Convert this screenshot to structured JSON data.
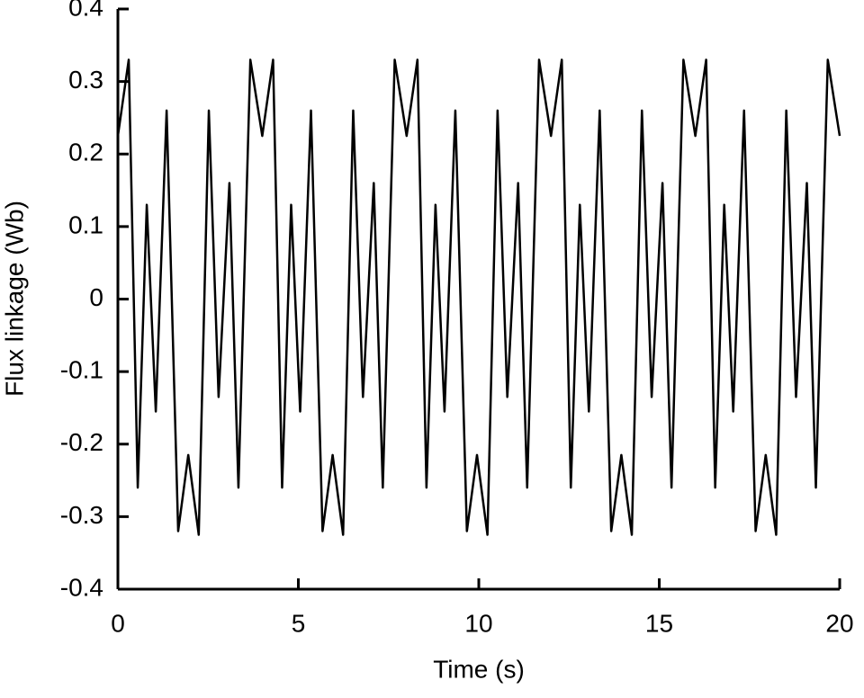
{
  "chart_data": {
    "type": "line",
    "xlabel": "Time (s)",
    "ylabel": "Flux linkage (Wb)",
    "x": [
      0,
      0.3,
      0.55,
      0.8,
      1.05,
      1.35,
      1.67,
      1.95,
      2.24,
      2.52,
      2.79,
      3.09,
      3.34,
      3.67,
      4,
      4.3,
      4.55,
      4.8,
      5.05,
      5.35,
      5.67,
      5.95,
      6.24,
      6.52,
      6.79,
      7.09,
      7.34,
      7.67,
      8,
      8.3,
      8.55,
      8.8,
      9.05,
      9.35,
      9.67,
      9.95,
      10.24,
      10.52,
      10.79,
      11.09,
      11.34,
      11.67,
      12,
      12.3,
      12.55,
      12.8,
      13.05,
      13.35,
      13.67,
      13.95,
      14.24,
      14.52,
      14.79,
      15.09,
      15.34,
      15.67,
      16,
      16.3,
      16.55,
      16.8,
      17.05,
      17.35,
      17.67,
      17.95,
      18.24,
      18.52,
      18.79,
      19.09,
      19.34,
      19.67,
      20
    ],
    "series": [
      {
        "name": "Flux linkage",
        "color": "#000000",
        "values": [
          0.225,
          0.33,
          -0.26,
          0.13,
          -0.155,
          0.26,
          -0.32,
          -0.215,
          -0.325,
          0.26,
          -0.135,
          0.16,
          -0.26,
          0.33,
          0.225,
          0.33,
          -0.26,
          0.13,
          -0.155,
          0.26,
          -0.32,
          -0.215,
          -0.325,
          0.26,
          -0.135,
          0.16,
          -0.26,
          0.33,
          0.225,
          0.33,
          -0.26,
          0.13,
          -0.155,
          0.26,
          -0.32,
          -0.215,
          -0.325,
          0.26,
          -0.135,
          0.16,
          -0.26,
          0.33,
          0.225,
          0.33,
          -0.26,
          0.13,
          -0.155,
          0.26,
          -0.32,
          -0.215,
          -0.325,
          0.26,
          -0.135,
          0.16,
          -0.26,
          0.33,
          0.225,
          0.33,
          -0.26,
          0.13,
          -0.155,
          0.26,
          -0.32,
          -0.215,
          -0.325,
          0.26,
          -0.135,
          0.16,
          -0.26,
          0.33,
          0.225
        ]
      }
    ],
    "xlim": [
      0,
      20
    ],
    "xticks": [
      0,
      5,
      10,
      15,
      20
    ],
    "ylim": [
      -0.4,
      0.4
    ],
    "yticks": [
      -0.4,
      -0.3,
      -0.2,
      -0.1,
      0,
      0.1,
      0.2,
      0.3,
      0.4
    ],
    "grid": false
  }
}
